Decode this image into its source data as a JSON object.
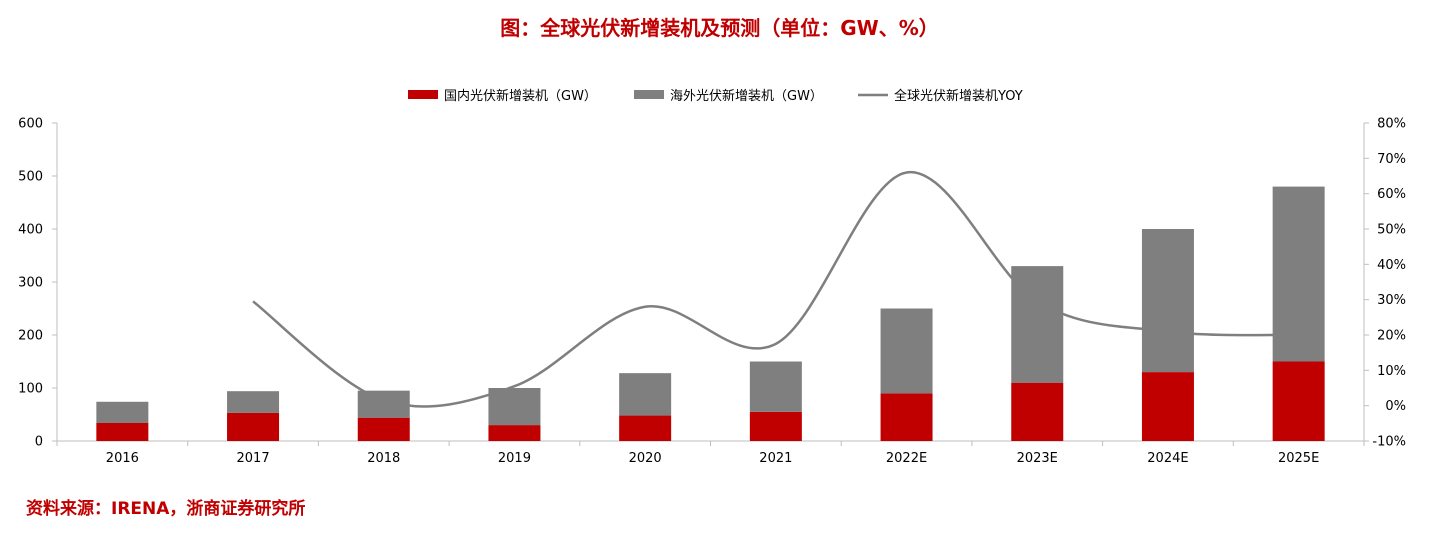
{
  "title": "图：全球光伏新增装机及预测（单位：GW、%）",
  "source": "资料来源：IRENA，浙商证券研究所",
  "chart_data": {
    "type": "bar",
    "stacked": true,
    "categories": [
      "2016",
      "2017",
      "2018",
      "2019",
      "2020",
      "2021",
      "2022E",
      "2023E",
      "2024E",
      "2025E"
    ],
    "series": [
      {
        "name": "国内光伏新增装机（GW）",
        "type": "bar",
        "axis": "left",
        "color": "#c00000",
        "values": [
          34,
          53,
          44,
          30,
          48,
          55,
          90,
          110,
          130,
          150
        ]
      },
      {
        "name": "海外光伏新增装机（GW）",
        "type": "bar",
        "axis": "left",
        "color": "#7f7f7f",
        "values": [
          40,
          41,
          51,
          70,
          80,
          95,
          160,
          220,
          270,
          330
        ]
      },
      {
        "name": "全球光伏新增装机YOY",
        "type": "line",
        "axis": "right",
        "color": "#7f7f7f",
        "values": [
          null,
          29.5,
          1.5,
          5.5,
          28,
          17.5,
          66,
          29.5,
          21,
          20
        ]
      }
    ],
    "y_left": {
      "ylim": [
        0,
        600
      ],
      "ticks": [
        "0",
        "100",
        "200",
        "300",
        "400",
        "500",
        "600"
      ]
    },
    "y_right": {
      "ylim": [
        -10,
        80
      ],
      "ticks": [
        "-10%",
        "0%",
        "10%",
        "20%",
        "30%",
        "40%",
        "50%",
        "60%",
        "70%",
        "80%"
      ]
    },
    "legend_position": "top-center",
    "grid": false
  }
}
